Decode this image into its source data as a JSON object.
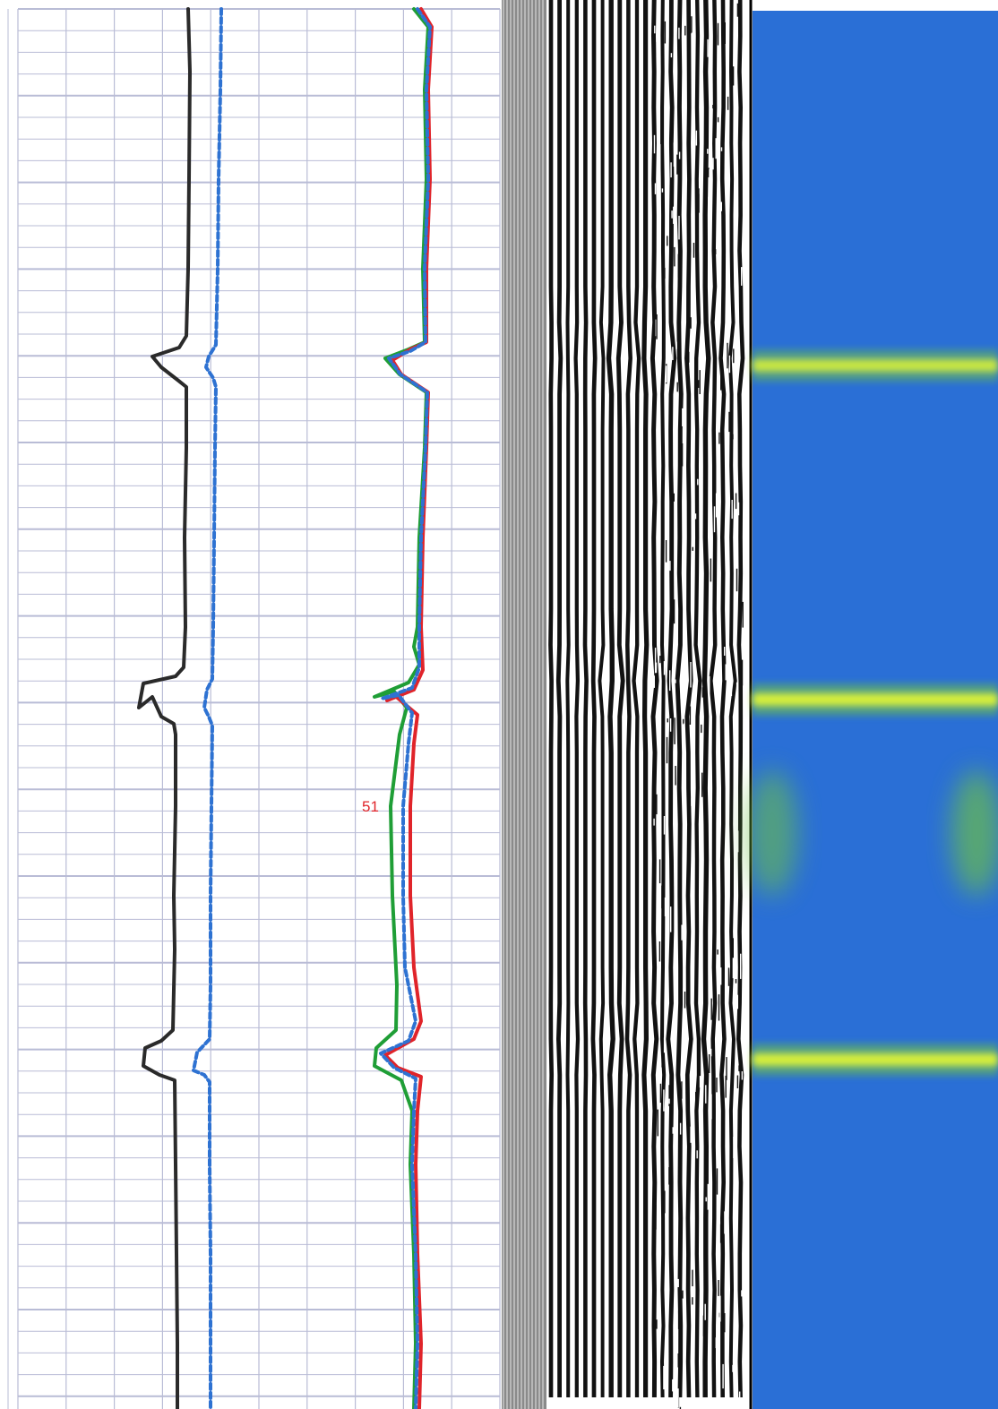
{
  "chart_data": [
    {
      "type": "line",
      "track": "left",
      "grid": true,
      "colors": {
        "grid": "#b9bcd6",
        "background": "#ffffff"
      },
      "series": [
        {
          "color": "#2a2a2a",
          "style": "solid",
          "points": [
            [
              210,
              10
            ],
            [
              212,
              80
            ],
            [
              211,
              200
            ],
            [
              210,
              300
            ],
            [
              208,
              375
            ],
            [
              200,
              388
            ],
            [
              170,
              398
            ],
            [
              180,
              410
            ],
            [
              198,
              424
            ],
            [
              208,
              432
            ],
            [
              208,
              500
            ],
            [
              206,
              600
            ],
            [
              207,
              700
            ],
            [
              205,
              745
            ],
            [
              196,
              755
            ],
            [
              160,
              763
            ],
            [
              155,
              790
            ],
            [
              170,
              778
            ],
            [
              180,
              800
            ],
            [
              194,
              808
            ],
            [
              196,
              820
            ],
            [
              196,
              900
            ],
            [
              194,
              1000
            ],
            [
              195,
              1060
            ],
            [
              193,
              1150
            ],
            [
              180,
              1162
            ],
            [
              162,
              1170
            ],
            [
              160,
              1190
            ],
            [
              178,
              1200
            ],
            [
              195,
              1206
            ],
            [
              196,
              1300
            ],
            [
              197,
              1400
            ],
            [
              198,
              1500
            ],
            [
              198,
              1573
            ]
          ]
        },
        {
          "color": "#2e72d2",
          "style": "dashed",
          "points": [
            [
              247,
              10
            ],
            [
              246,
              100
            ],
            [
              244,
              200
            ],
            [
              243,
              300
            ],
            [
              241,
              385
            ],
            [
              233,
              398
            ],
            [
              230,
              410
            ],
            [
              238,
              422
            ],
            [
              241,
              432
            ],
            [
              240,
              500
            ],
            [
              239,
              600
            ],
            [
              238,
              700
            ],
            [
              237,
              758
            ],
            [
              231,
              770
            ],
            [
              228,
              790
            ],
            [
              233,
              800
            ],
            [
              237,
              810
            ],
            [
              236,
              900
            ],
            [
              235,
              1000
            ],
            [
              235,
              1100
            ],
            [
              234,
              1160
            ],
            [
              220,
              1175
            ],
            [
              216,
              1195
            ],
            [
              228,
              1200
            ],
            [
              234,
              1208
            ],
            [
              234,
              1300
            ],
            [
              235,
              1400
            ],
            [
              235,
              1500
            ],
            [
              235,
              1573
            ]
          ]
        },
        {
          "color": "#1f9e36",
          "style": "solid",
          "points": [
            [
              462,
              10
            ],
            [
              478,
              30
            ],
            [
              474,
              100
            ],
            [
              476,
              200
            ],
            [
              472,
              300
            ],
            [
              474,
              382
            ],
            [
              456,
              390
            ],
            [
              430,
              400
            ],
            [
              446,
              418
            ],
            [
              476,
              438
            ],
            [
              474,
              500
            ],
            [
              468,
              600
            ],
            [
              466,
              700
            ],
            [
              462,
              722
            ],
            [
              468,
              742
            ],
            [
              456,
              762
            ],
            [
              418,
              778
            ],
            [
              440,
              772
            ],
            [
              454,
              790
            ],
            [
              446,
              820
            ],
            [
              436,
              900
            ],
            [
              438,
              1000
            ],
            [
              443,
              1100
            ],
            [
              442,
              1150
            ],
            [
              420,
              1170
            ],
            [
              418,
              1190
            ],
            [
              448,
              1206
            ],
            [
              460,
              1240
            ],
            [
              458,
              1300
            ],
            [
              462,
              1400
            ],
            [
              464,
              1500
            ],
            [
              462,
              1573
            ]
          ]
        },
        {
          "color": "#e0242a",
          "style": "solid",
          "points": [
            [
              470,
              10
            ],
            [
              482,
              30
            ],
            [
              478,
              100
            ],
            [
              480,
              200
            ],
            [
              476,
              300
            ],
            [
              476,
              382
            ],
            [
              458,
              390
            ],
            [
              438,
              402
            ],
            [
              448,
              418
            ],
            [
              478,
              438
            ],
            [
              476,
              500
            ],
            [
              472,
              600
            ],
            [
              470,
              700
            ],
            [
              472,
              748
            ],
            [
              462,
              770
            ],
            [
              432,
              782
            ],
            [
              440,
              776
            ],
            [
              466,
              798
            ],
            [
              462,
              830
            ],
            [
              458,
              900
            ],
            [
              458,
              1000
            ],
            [
              462,
              1080
            ],
            [
              470,
              1140
            ],
            [
              462,
              1160
            ],
            [
              430,
              1178
            ],
            [
              444,
              1192
            ],
            [
              470,
              1202
            ],
            [
              466,
              1240
            ],
            [
              464,
              1300
            ],
            [
              466,
              1400
            ],
            [
              470,
              1500
            ],
            [
              468,
              1573
            ]
          ]
        },
        {
          "color": "#2e72d2",
          "style": "dashed",
          "points": [
            [
              466,
              10
            ],
            [
              480,
              30
            ],
            [
              476,
              100
            ],
            [
              478,
              200
            ],
            [
              474,
              300
            ],
            [
              475,
              382
            ],
            [
              458,
              392
            ],
            [
              434,
              400
            ],
            [
              447,
              418
            ],
            [
              477,
              438
            ],
            [
              475,
              500
            ],
            [
              470,
              600
            ],
            [
              468,
              700
            ],
            [
              468,
              745
            ],
            [
              460,
              768
            ],
            [
              426,
              780
            ],
            [
              445,
              776
            ],
            [
              460,
              796
            ],
            [
              456,
              830
            ],
            [
              450,
              900
            ],
            [
              450,
              1000
            ],
            [
              452,
              1080
            ],
            [
              464,
              1140
            ],
            [
              456,
              1162
            ],
            [
              425,
              1176
            ],
            [
              440,
              1192
            ],
            [
              464,
              1204
            ],
            [
              462,
              1240
            ],
            [
              460,
              1300
            ],
            [
              464,
              1400
            ],
            [
              466,
              1500
            ],
            [
              464,
              1573
            ]
          ]
        }
      ],
      "annotations": [
        {
          "text": "51",
          "color": "#e0242a"
        }
      ]
    },
    {
      "type": "heatmap",
      "track": "middle",
      "colors": {
        "bright": "#ffffff",
        "dark": "#111111",
        "gray": "#8a8a8a"
      }
    },
    {
      "type": "heatmap",
      "track": "right",
      "colors": {
        "base": "#2a6fd6",
        "band": "#d7f03a",
        "halo": "#6cbf4a"
      },
      "bands": [
        {
          "depth": 408,
          "intensity": 0.9
        },
        {
          "depth": 781,
          "intensity": 1.0
        },
        {
          "depth": 1183,
          "intensity": 1.0
        }
      ],
      "halos": [
        {
          "depth": 930,
          "side": "left",
          "intensity": 0.6
        },
        {
          "depth": 930,
          "side": "right",
          "intensity": 0.7
        }
      ]
    }
  ]
}
